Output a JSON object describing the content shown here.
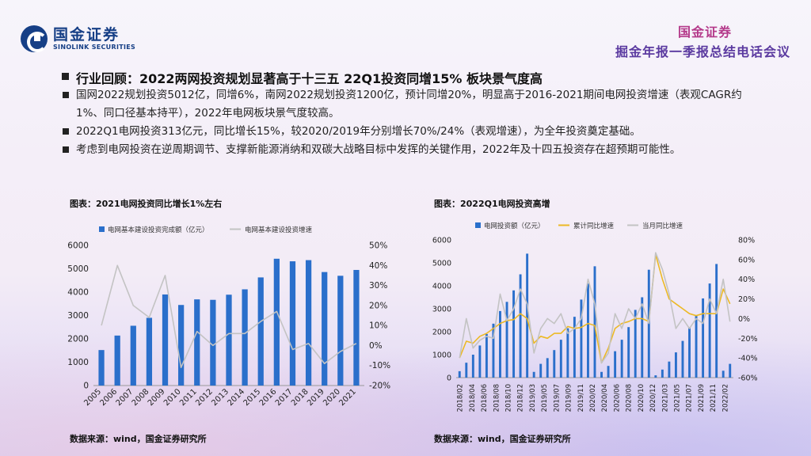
{
  "brand": {
    "name_cn": "国金证券",
    "name_en": "SINOLINK SECURITIES"
  },
  "event": {
    "brand": "国金证券",
    "name": "掘金年报一季报总结电话会议"
  },
  "headline": "行业回顾：2022两网投资规划显著高于十三五 22Q1投资同增15% 板块景气度高",
  "bullets": [
    "国网2022规划投资5012亿，同增6%，南网2022规划投资1200亿，预计同增20%，明显高于2016-2021期间电网投资增速（表观CAGR约1%、同口径基本持平），2022年电网板块景气度较高。",
    "2022Q1电网投资313亿元，同比增长15%，较2020/2019年分别增长70%/24%（表观增速），为全年投资奠定基础。",
    "考虑到电网投资在逆周期调节、支撑新能源消纳和双碳大战略目标中发挥的关键作用，2022年及十四五投资存在超预期可能性。"
  ],
  "colors": {
    "bar": "#2a6fcb",
    "gray_line": "#c3c3c3",
    "yellow_line": "#ecb925"
  },
  "chart1": {
    "title": "图表：2021电网投资同比增长1%左右",
    "source": "数据来源：wind，国金证券研究所"
  },
  "chart2": {
    "title": "图表：2022Q1电网投资高增",
    "source": "数据来源：wind，国金证券研究所"
  },
  "chart_data": [
    {
      "type": "bar",
      "title": "图表：2021电网投资同比增长1%左右",
      "categories": [
        "2005",
        "2006",
        "2007",
        "2008",
        "2009",
        "2010",
        "2011",
        "2012",
        "2013",
        "2014",
        "2015",
        "2016",
        "2017",
        "2018",
        "2019",
        "2020",
        "2021"
      ],
      "series": [
        {
          "name": "电网基本建设投资完成额（亿元）",
          "type": "bar",
          "axis": "left",
          "values": [
            1520,
            2140,
            2560,
            2900,
            3900,
            3450,
            3690,
            3670,
            3890,
            4120,
            4630,
            5430,
            5320,
            5370,
            4860,
            4700,
            4950
          ]
        },
        {
          "name": "电网基本建设投资增速",
          "type": "line",
          "axis": "right",
          "values": [
            10,
            40,
            20,
            14,
            35,
            -11,
            7,
            0,
            6,
            6,
            12,
            17,
            -2,
            1,
            -9,
            -3,
            1
          ]
        }
      ],
      "ylim_left": [
        0,
        6000
      ],
      "yticks_left": [
        0,
        1000,
        2000,
        3000,
        4000,
        5000,
        6000
      ],
      "ylim_right": [
        -20,
        50
      ],
      "yticks_right": [
        "-20%",
        "-10%",
        "0%",
        "10%",
        "20%",
        "30%",
        "40%",
        "50%"
      ],
      "legend": "top"
    },
    {
      "type": "bar",
      "title": "图表：2022Q1电网投资高增",
      "x_tick_labels": [
        "2018/02",
        "2018/04",
        "2018/06",
        "2018/08",
        "2018/10",
        "2018/12",
        "2019/03",
        "2019/05",
        "2019/07",
        "2019/09",
        "2019/11",
        "2020/02",
        "2020/04",
        "2020/06",
        "2020/08",
        "2020/10",
        "2020/12",
        "2021/03",
        "2021/05",
        "2021/07",
        "2021/09",
        "2021/11",
        "2022/02"
      ],
      "series": [
        {
          "name": "电网投资额（亿元）",
          "type": "bar",
          "axis": "left",
          "values": [
            280,
            650,
            1000,
            1400,
            1900,
            2350,
            2900,
            3300,
            3800,
            4500,
            5400,
            250,
            600,
            850,
            1200,
            1650,
            2150,
            2650,
            3400,
            4100,
            4850,
            250,
            510,
            1150,
            1650,
            2200,
            2950,
            3500,
            4700,
            100,
            350,
            700,
            1100,
            1600,
            2200,
            2700,
            3450,
            4100,
            4950,
            300,
            600
          ]
        },
        {
          "name": "累计同比增速",
          "type": "line",
          "axis": "right",
          "values": [
            -40,
            -23,
            -25,
            -18,
            -15,
            -10,
            -5,
            -2,
            -1,
            5,
            0,
            -25,
            -18,
            -20,
            -15,
            -15,
            -8,
            -10,
            -9,
            -5,
            -7,
            -45,
            -30,
            -10,
            -5,
            -3,
            0,
            0,
            -3,
            65,
            40,
            20,
            15,
            10,
            5,
            3,
            5,
            5,
            5,
            30,
            15
          ]
        },
        {
          "name": "当月同比增速",
          "type": "line",
          "axis": "right",
          "values": [
            -40,
            0,
            -30,
            -22,
            -18,
            -20,
            25,
            -2,
            10,
            30,
            15,
            -35,
            -10,
            0,
            -5,
            5,
            -15,
            -10,
            0,
            40,
            15,
            -45,
            -35,
            5,
            -10,
            10,
            0,
            15,
            -5,
            67,
            50,
            25,
            -10,
            0,
            -10,
            0,
            -5,
            20,
            5,
            40,
            -3
          ]
        }
      ],
      "ylim_left": [
        0,
        6000
      ],
      "yticks_left": [
        0,
        1000,
        2000,
        3000,
        4000,
        5000,
        6000
      ],
      "ylim_right": [
        -60,
        80
      ],
      "yticks_right": [
        "-60%",
        "-40%",
        "-20%",
        "0%",
        "20%",
        "40%",
        "60%",
        "80%"
      ],
      "legend": "top"
    }
  ]
}
